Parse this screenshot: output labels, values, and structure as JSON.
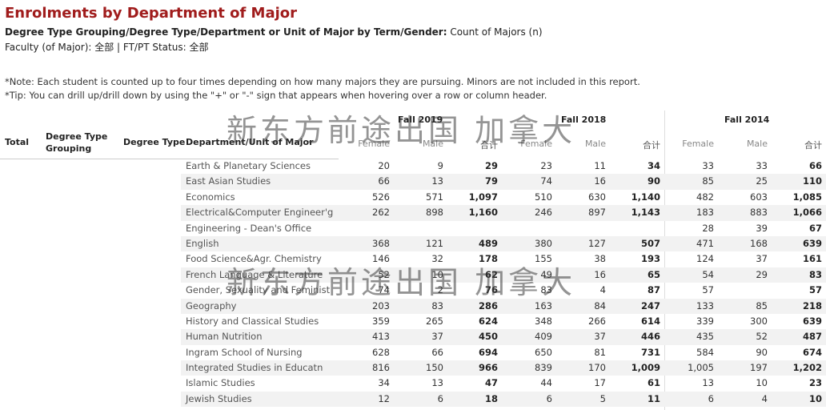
{
  "title": "Enrolments by Department of Major",
  "subtitle": {
    "bold": "Degree Type Grouping/Degree Type/Department or Unit of Major by Term/Gender:",
    "rest": " Count of Majors (n)"
  },
  "filters": "Faculty (of Major): 全部 | FT/PT Status: 全部",
  "notes": [
    "*Note: Each student is counted up to four times depending on how many majors they are pursuing. Minors are not included in this report.",
    "*Tip: You can drill up/drill down by using the \"+\" or \"-\" sign that appears when hovering over a row or column header."
  ],
  "headers": {
    "total": "Total",
    "degree_type_grouping": "Degree Type Grouping",
    "degree_type": "Degree Type",
    "department": "Department/Unit of Major",
    "terms": [
      "Fall 2019",
      "Fall 2018",
      "Fall 2014"
    ],
    "sub": [
      "Female",
      "Male",
      "合计"
    ]
  },
  "watermark": "新东方前途出国 加拿大",
  "rows": [
    {
      "dept": "Earth & Planetary Sciences",
      "v": [
        "20",
        "9",
        "29",
        "23",
        "11",
        "34",
        "33",
        "33",
        "66"
      ]
    },
    {
      "dept": "East Asian Studies",
      "v": [
        "66",
        "13",
        "79",
        "74",
        "16",
        "90",
        "85",
        "25",
        "110"
      ]
    },
    {
      "dept": "Economics",
      "v": [
        "526",
        "571",
        "1,097",
        "510",
        "630",
        "1,140",
        "482",
        "603",
        "1,085"
      ]
    },
    {
      "dept": "Electrical&Computer Engineer'g",
      "v": [
        "262",
        "898",
        "1,160",
        "246",
        "897",
        "1,143",
        "183",
        "883",
        "1,066"
      ]
    },
    {
      "dept": "Engineering - Dean's Office",
      "v": [
        "",
        "",
        "",
        "",
        "",
        "",
        "28",
        "39",
        "67"
      ]
    },
    {
      "dept": "English",
      "v": [
        "368",
        "121",
        "489",
        "380",
        "127",
        "507",
        "471",
        "168",
        "639"
      ]
    },
    {
      "dept": "Food Science&Agr. Chemistry",
      "v": [
        "146",
        "32",
        "178",
        "155",
        "38",
        "193",
        "124",
        "37",
        "161"
      ]
    },
    {
      "dept": "French Language & Literature",
      "v": [
        "52",
        "10",
        "62",
        "49",
        "16",
        "65",
        "54",
        "29",
        "83"
      ]
    },
    {
      "dept": "Gender, Sexuality and Feminist",
      "v": [
        "74",
        "2",
        "76",
        "83",
        "4",
        "87",
        "57",
        "",
        "57"
      ]
    },
    {
      "dept": "Geography",
      "v": [
        "203",
        "83",
        "286",
        "163",
        "84",
        "247",
        "133",
        "85",
        "218"
      ]
    },
    {
      "dept": "History and Classical Studies",
      "v": [
        "359",
        "265",
        "624",
        "348",
        "266",
        "614",
        "339",
        "300",
        "639"
      ]
    },
    {
      "dept": "Human Nutrition",
      "v": [
        "413",
        "37",
        "450",
        "409",
        "37",
        "446",
        "435",
        "52",
        "487"
      ]
    },
    {
      "dept": "Ingram School of Nursing",
      "v": [
        "628",
        "66",
        "694",
        "650",
        "81",
        "731",
        "584",
        "90",
        "674"
      ]
    },
    {
      "dept": "Integrated Studies in Educatn",
      "v": [
        "816",
        "150",
        "966",
        "839",
        "170",
        "1,009",
        "1,005",
        "197",
        "1,202"
      ]
    },
    {
      "dept": "Islamic Studies",
      "v": [
        "34",
        "13",
        "47",
        "44",
        "17",
        "61",
        "13",
        "10",
        "23"
      ]
    },
    {
      "dept": "Jewish Studies",
      "v": [
        "12",
        "6",
        "18",
        "6",
        "5",
        "11",
        "6",
        "4",
        "10"
      ]
    }
  ]
}
